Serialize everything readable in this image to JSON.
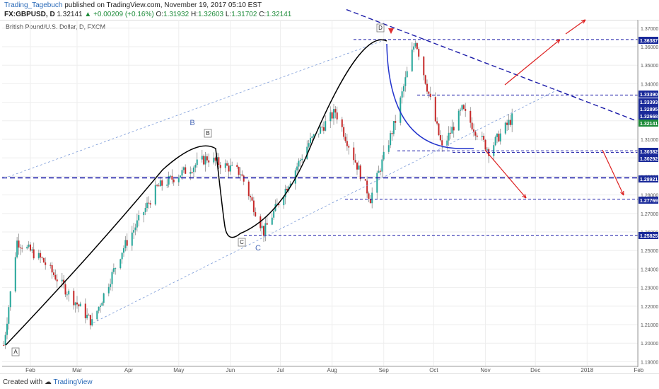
{
  "header": {
    "author": "Trading_Tagebuch",
    "published_text": " published on TradingView.com, November 19, 2017 05:10 EST",
    "symbol": "FX:GBPUSD, D",
    "last": "1.32141",
    "change": "▲ +0.00209 (+0.16%)",
    "o_label": "O:",
    "o_value": "1.31932",
    "h_label": "H:",
    "h_value": "1.32603",
    "l_label": "L:",
    "l_value": "1.31702",
    "c_label": "C:",
    "c_value": "1.32141",
    "instrument": "British Pound/U.S. Dollar, D, FXCM"
  },
  "footer": {
    "created_with": "Created with",
    "brand": "TradingView"
  },
  "colors": {
    "up": "#26a69a",
    "down": "#c62828",
    "level": "#1a1aa8",
    "arrow": "#dd2222",
    "axis_tag": "#1a2a9a"
  },
  "chart_data": {
    "type": "candlestick",
    "instrument": "British Pound/U.S. Dollar, D, FXCM",
    "x_ticks": [
      "Feb",
      "Mar",
      "Apr",
      "May",
      "Jun",
      "Jul",
      "Aug",
      "Sep",
      "Oct",
      "Nov",
      "Dec",
      "2018",
      "Feb"
    ],
    "y_ticks": [
      "1.37000",
      "1.36000",
      "1.35000",
      "1.34000",
      "1.33000",
      "1.32000",
      "1.31000",
      "1.30000",
      "1.29000",
      "1.28000",
      "1.27000",
      "1.26000",
      "1.25000",
      "1.24000",
      "1.23000",
      "1.22000",
      "1.21000",
      "1.20000",
      "1.19000"
    ],
    "ylim": [
      1.1875,
      1.3745
    ],
    "price_tags": [
      "1.36387",
      "1.33390",
      "1.33393",
      "1.32895",
      "1.32668",
      "1.32141",
      "1.30382",
      "1.30292",
      "1.28921",
      "1.27769",
      "1.25825"
    ],
    "wave_labels": [
      "A",
      "B",
      "B",
      "C",
      "C",
      "D"
    ],
    "anchor_points": [
      {
        "date": "2017-01-16",
        "price": 1.199
      },
      {
        "date": "2017-01-24",
        "price": 1.255
      },
      {
        "date": "2017-02-08",
        "price": 1.245
      },
      {
        "date": "2017-03-10",
        "price": 1.211
      },
      {
        "date": "2017-03-28",
        "price": 1.25
      },
      {
        "date": "2017-04-18",
        "price": 1.284
      },
      {
        "date": "2017-05-18",
        "price": 1.3
      },
      {
        "date": "2017-06-07",
        "price": 1.292
      },
      {
        "date": "2017-06-21",
        "price": 1.26
      },
      {
        "date": "2017-07-18",
        "price": 1.308
      },
      {
        "date": "2017-08-03",
        "price": 1.325
      },
      {
        "date": "2017-08-24",
        "price": 1.278
      },
      {
        "date": "2017-09-08",
        "price": 1.32
      },
      {
        "date": "2017-09-20",
        "price": 1.364
      },
      {
        "date": "2017-10-06",
        "price": 1.305
      },
      {
        "date": "2017-10-18",
        "price": 1.326
      },
      {
        "date": "2017-11-03",
        "price": 1.304
      },
      {
        "date": "2017-11-17",
        "price": 1.3214
      }
    ]
  }
}
